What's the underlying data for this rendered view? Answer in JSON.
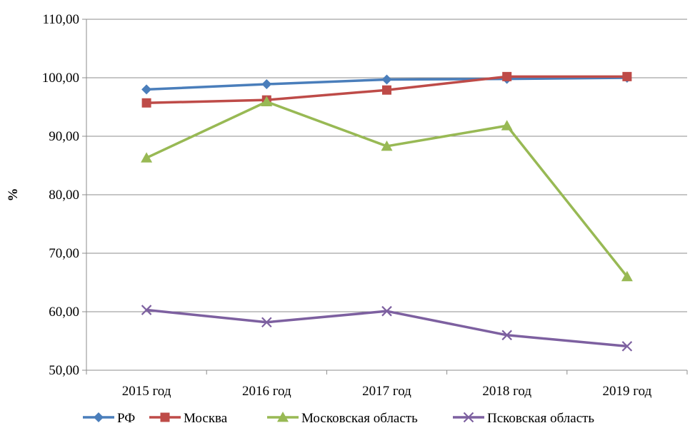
{
  "chart_data": {
    "type": "line",
    "title": "",
    "xlabel": "",
    "ylabel": "%",
    "categories": [
      "2015 год",
      "2016 год",
      "2017 год",
      "2018 год",
      "2019 год"
    ],
    "ylim": [
      50,
      110
    ],
    "yticks": [
      50,
      60,
      70,
      80,
      90,
      100,
      110
    ],
    "ytick_labels": [
      "50,00",
      "60,00",
      "70,00",
      "80,00",
      "90,00",
      "100,00",
      "110,00"
    ],
    "grid": "horizontal",
    "legend_position": "bottom",
    "series": [
      {
        "name": "РФ",
        "values": [
          98.0,
          98.9,
          99.7,
          99.8,
          100.0
        ],
        "color": "#4a7ebb",
        "marker": "diamond"
      },
      {
        "name": "Москва",
        "values": [
          95.7,
          96.2,
          97.9,
          100.2,
          100.2
        ],
        "color": "#be4b48",
        "marker": "square"
      },
      {
        "name": "Московская область",
        "values": [
          86.3,
          95.9,
          88.3,
          91.8,
          66.0
        ],
        "color": "#98b954",
        "marker": "triangle"
      },
      {
        "name": "Псковская область",
        "values": [
          60.3,
          58.2,
          60.1,
          56.0,
          54.1
        ],
        "color": "#7d60a0",
        "marker": "x"
      }
    ]
  }
}
